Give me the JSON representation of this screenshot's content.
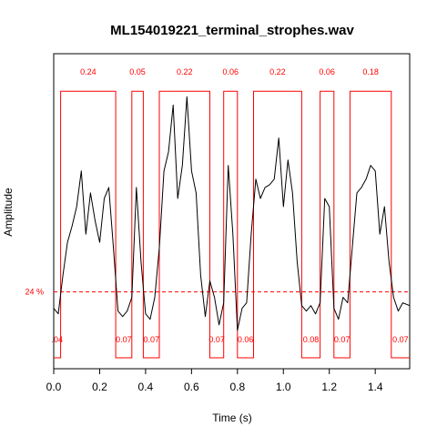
{
  "chart_data": {
    "type": "line",
    "title": "ML154019221_terminal_strophes.wav",
    "xlabel": "Time (s)",
    "ylabel": "Amplitude",
    "xlim": [
      0,
      1.55
    ],
    "ylim": [
      0,
      1
    ],
    "x_ticks": [
      {
        "value": 0,
        "label": "0.0"
      },
      {
        "value": 0.2,
        "label": "0.2"
      },
      {
        "value": 0.4,
        "label": "0.4"
      },
      {
        "value": 0.6,
        "label": "0.6"
      },
      {
        "value": 0.8,
        "label": "0.8"
      },
      {
        "value": 1.0,
        "label": "1.0"
      },
      {
        "value": 1.2,
        "label": "1.2"
      },
      {
        "value": 1.4,
        "label": "1.4"
      }
    ],
    "threshold": {
      "value": 0.24,
      "label": "24 %",
      "color": "#ff0000"
    },
    "detection_box_top": 0.97,
    "detections": [
      {
        "start": 0.03,
        "end": 0.27,
        "label": "0.24"
      },
      {
        "start": 0.34,
        "end": 0.39,
        "label": "0.05"
      },
      {
        "start": 0.46,
        "end": 0.68,
        "label": "0.22"
      },
      {
        "start": 0.74,
        "end": 0.8,
        "label": "0.06"
      },
      {
        "start": 0.87,
        "end": 1.08,
        "label": "0.22"
      },
      {
        "start": 1.16,
        "end": 1.22,
        "label": "0.06"
      },
      {
        "start": 1.29,
        "end": 1.47,
        "label": "0.18"
      }
    ],
    "gaps": [
      {
        "start": 0.0,
        "end": 0.03,
        "label": ".04"
      },
      {
        "start": 0.27,
        "end": 0.34,
        "label": "0.07"
      },
      {
        "start": 0.39,
        "end": 0.46,
        "label": "0.07"
      },
      {
        "start": 0.68,
        "end": 0.74,
        "label": "0.07"
      },
      {
        "start": 0.8,
        "end": 0.87,
        "label": "0.06"
      },
      {
        "start": 1.08,
        "end": 1.16,
        "label": "0.08"
      },
      {
        "start": 1.22,
        "end": 1.29,
        "label": "0.07"
      },
      {
        "start": 1.47,
        "end": 1.55,
        "label": "0.07"
      }
    ],
    "envelope": {
      "x": [
        0.0,
        0.02,
        0.04,
        0.06,
        0.08,
        0.1,
        0.12,
        0.14,
        0.16,
        0.18,
        0.2,
        0.22,
        0.24,
        0.26,
        0.28,
        0.3,
        0.32,
        0.34,
        0.36,
        0.38,
        0.4,
        0.42,
        0.44,
        0.46,
        0.48,
        0.5,
        0.52,
        0.54,
        0.56,
        0.58,
        0.6,
        0.62,
        0.64,
        0.66,
        0.68,
        0.7,
        0.72,
        0.74,
        0.76,
        0.78,
        0.8,
        0.82,
        0.84,
        0.86,
        0.88,
        0.9,
        0.92,
        0.94,
        0.96,
        0.98,
        1.0,
        1.02,
        1.04,
        1.06,
        1.08,
        1.1,
        1.12,
        1.14,
        1.16,
        1.18,
        1.2,
        1.22,
        1.24,
        1.26,
        1.28,
        1.3,
        1.32,
        1.34,
        1.36,
        1.38,
        1.4,
        1.42,
        1.44,
        1.46,
        1.48,
        1.5,
        1.52,
        1.55
      ],
      "y": [
        0.18,
        0.16,
        0.3,
        0.42,
        0.48,
        0.55,
        0.68,
        0.45,
        0.6,
        0.5,
        0.42,
        0.58,
        0.62,
        0.4,
        0.17,
        0.15,
        0.17,
        0.22,
        0.62,
        0.35,
        0.16,
        0.14,
        0.22,
        0.4,
        0.68,
        0.75,
        0.92,
        0.58,
        0.7,
        0.95,
        0.68,
        0.6,
        0.3,
        0.15,
        0.28,
        0.22,
        0.12,
        0.2,
        0.7,
        0.45,
        0.1,
        0.18,
        0.2,
        0.45,
        0.65,
        0.58,
        0.62,
        0.63,
        0.65,
        0.8,
        0.55,
        0.72,
        0.6,
        0.35,
        0.19,
        0.17,
        0.19,
        0.16,
        0.2,
        0.58,
        0.55,
        0.18,
        0.14,
        0.22,
        0.2,
        0.4,
        0.6,
        0.62,
        0.65,
        0.7,
        0.68,
        0.45,
        0.55,
        0.35,
        0.22,
        0.17,
        0.2,
        0.19
      ]
    }
  }
}
